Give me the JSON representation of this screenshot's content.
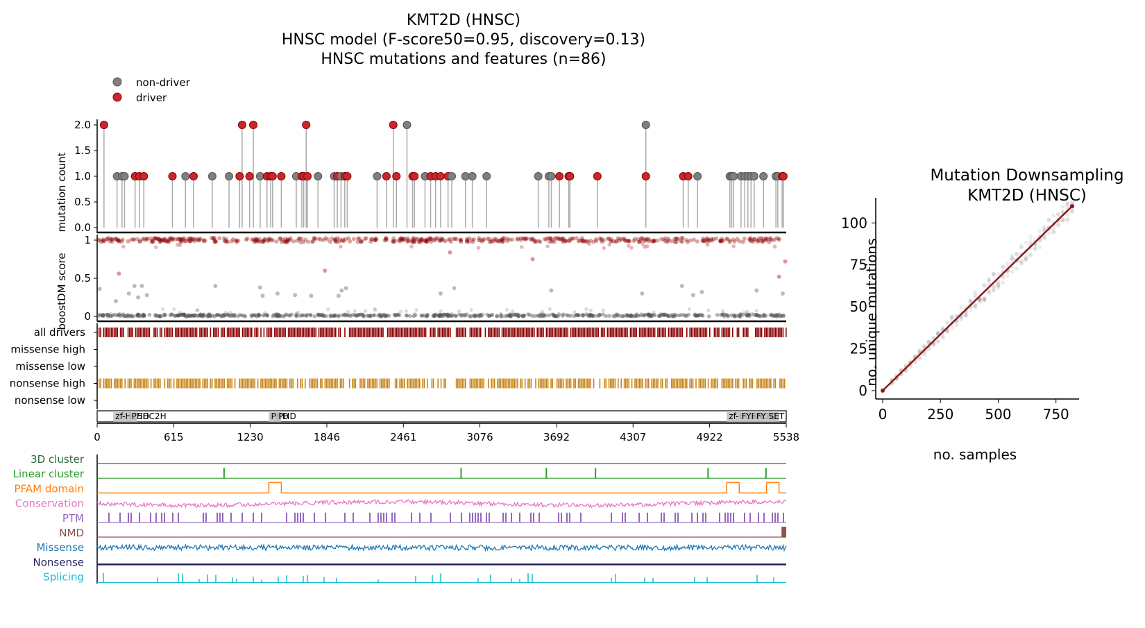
{
  "main_title": {
    "line1": "KMT2D (HNSC)",
    "line2": "HNSC model (F-score50=0.95, discovery=0.13)",
    "line3": "HNSC mutations and features (n=86)"
  },
  "legend": {
    "placement": "top-left",
    "entries": [
      {
        "label": "non-driver",
        "color": "#7f7f7f"
      },
      {
        "label": "driver",
        "color": "#c8282d"
      }
    ]
  },
  "colors": {
    "driver": "#c8282d",
    "non_driver": "#7f7f7f",
    "driver_dark": "#8b0000",
    "nonsense": "#c8861a",
    "cluster3d": "#2e6b3a",
    "linear_cluster": "#2ca02c",
    "pfam": "#ff7f0e",
    "conservation": "#e377c2",
    "ptm": "#9467bd",
    "nmd": "#8c564b",
    "missense": "#1f77b4",
    "nonsense_track": "#1f1f5f",
    "splicing": "#17becf",
    "fit_line": "#8b1a1a"
  },
  "chart_data": [
    {
      "id": "lollipop",
      "type": "scatter",
      "ylabel": "mutation count",
      "xlim": [
        0,
        5538
      ],
      "ylim": [
        0,
        2
      ],
      "yticks": [
        "0.0",
        "0.5",
        "1.0",
        "1.5",
        "2.0"
      ],
      "points": [
        {
          "x": 55,
          "y": 2,
          "driver": true
        },
        {
          "x": 160,
          "y": 1,
          "driver": false
        },
        {
          "x": 200,
          "y": 1,
          "driver": false
        },
        {
          "x": 220,
          "y": 1,
          "driver": false
        },
        {
          "x": 305,
          "y": 1,
          "driver": true
        },
        {
          "x": 340,
          "y": 1,
          "driver": true
        },
        {
          "x": 375,
          "y": 1,
          "driver": true
        },
        {
          "x": 605,
          "y": 1,
          "driver": true
        },
        {
          "x": 710,
          "y": 1,
          "driver": false
        },
        {
          "x": 775,
          "y": 1,
          "driver": true
        },
        {
          "x": 925,
          "y": 1,
          "driver": false
        },
        {
          "x": 1060,
          "y": 1,
          "driver": false
        },
        {
          "x": 1145,
          "y": 1,
          "driver": true
        },
        {
          "x": 1165,
          "y": 2,
          "driver": true
        },
        {
          "x": 1225,
          "y": 1,
          "driver": true
        },
        {
          "x": 1255,
          "y": 2,
          "driver": true
        },
        {
          "x": 1310,
          "y": 1,
          "driver": false
        },
        {
          "x": 1365,
          "y": 1,
          "driver": true
        },
        {
          "x": 1395,
          "y": 1,
          "driver": true
        },
        {
          "x": 1410,
          "y": 1,
          "driver": true
        },
        {
          "x": 1480,
          "y": 1,
          "driver": true
        },
        {
          "x": 1600,
          "y": 1,
          "driver": false
        },
        {
          "x": 1645,
          "y": 1,
          "driver": true
        },
        {
          "x": 1660,
          "y": 1,
          "driver": true
        },
        {
          "x": 1680,
          "y": 2,
          "driver": true
        },
        {
          "x": 1690,
          "y": 1,
          "driver": true
        },
        {
          "x": 1775,
          "y": 1,
          "driver": false
        },
        {
          "x": 1905,
          "y": 1,
          "driver": false
        },
        {
          "x": 1930,
          "y": 1,
          "driver": true
        },
        {
          "x": 1960,
          "y": 1,
          "driver": false
        },
        {
          "x": 1990,
          "y": 1,
          "driver": true
        },
        {
          "x": 2010,
          "y": 1,
          "driver": true
        },
        {
          "x": 2250,
          "y": 1,
          "driver": false
        },
        {
          "x": 2325,
          "y": 1,
          "driver": true
        },
        {
          "x": 2380,
          "y": 2,
          "driver": true
        },
        {
          "x": 2405,
          "y": 1,
          "driver": true
        },
        {
          "x": 2490,
          "y": 2,
          "driver": false
        },
        {
          "x": 2535,
          "y": 1,
          "driver": true
        },
        {
          "x": 2550,
          "y": 1,
          "driver": true
        },
        {
          "x": 2635,
          "y": 1,
          "driver": false
        },
        {
          "x": 2680,
          "y": 1,
          "driver": true
        },
        {
          "x": 2720,
          "y": 1,
          "driver": true
        },
        {
          "x": 2760,
          "y": 1,
          "driver": true
        },
        {
          "x": 2820,
          "y": 1,
          "driver": true
        },
        {
          "x": 2850,
          "y": 1,
          "driver": false
        },
        {
          "x": 2960,
          "y": 1,
          "driver": false
        },
        {
          "x": 3015,
          "y": 1,
          "driver": false
        },
        {
          "x": 3130,
          "y": 1,
          "driver": false
        },
        {
          "x": 3545,
          "y": 1,
          "driver": false
        },
        {
          "x": 3630,
          "y": 1,
          "driver": false
        },
        {
          "x": 3650,
          "y": 1,
          "driver": false
        },
        {
          "x": 3715,
          "y": 1,
          "driver": true
        },
        {
          "x": 3790,
          "y": 1,
          "driver": true
        },
        {
          "x": 3800,
          "y": 1,
          "driver": true
        },
        {
          "x": 4020,
          "y": 1,
          "driver": true
        },
        {
          "x": 4410,
          "y": 2,
          "driver": false
        },
        {
          "x": 4410,
          "y": 1,
          "driver": true
        },
        {
          "x": 4710,
          "y": 1,
          "driver": true
        },
        {
          "x": 4750,
          "y": 1,
          "driver": true
        },
        {
          "x": 4825,
          "y": 1,
          "driver": false
        },
        {
          "x": 5085,
          "y": 1,
          "driver": false
        },
        {
          "x": 5100,
          "y": 1,
          "driver": false
        },
        {
          "x": 5115,
          "y": 1,
          "driver": false
        },
        {
          "x": 5175,
          "y": 1,
          "driver": false
        },
        {
          "x": 5205,
          "y": 1,
          "driver": false
        },
        {
          "x": 5230,
          "y": 1,
          "driver": false
        },
        {
          "x": 5255,
          "y": 1,
          "driver": false
        },
        {
          "x": 5280,
          "y": 1,
          "driver": false
        },
        {
          "x": 5355,
          "y": 1,
          "driver": false
        },
        {
          "x": 5455,
          "y": 1,
          "driver": false
        },
        {
          "x": 5470,
          "y": 1,
          "driver": false
        },
        {
          "x": 5505,
          "y": 1,
          "driver": true
        },
        {
          "x": 5515,
          "y": 1,
          "driver": true
        }
      ]
    },
    {
      "id": "boostdm",
      "type": "scatter",
      "ylabel": "boostDM score",
      "xlim": [
        0,
        5538
      ],
      "ylim": [
        0,
        1
      ],
      "yticks": [
        "0",
        "0.5",
        "1"
      ],
      "bands": [
        {
          "y": 1.0,
          "color": "#8b0000"
        },
        {
          "y": 0.0,
          "color": "#555555"
        }
      ],
      "points": [
        {
          "x": 20,
          "y": 0.36
        },
        {
          "x": 150,
          "y": 0.2
        },
        {
          "x": 175,
          "y": 0.56
        },
        {
          "x": 255,
          "y": 0.3
        },
        {
          "x": 300,
          "y": 0.4
        },
        {
          "x": 330,
          "y": 0.25
        },
        {
          "x": 360,
          "y": 0.4
        },
        {
          "x": 400,
          "y": 0.28
        },
        {
          "x": 950,
          "y": 0.4
        },
        {
          "x": 1310,
          "y": 0.38
        },
        {
          "x": 1330,
          "y": 0.27
        },
        {
          "x": 1450,
          "y": 0.3
        },
        {
          "x": 1590,
          "y": 0.28
        },
        {
          "x": 1720,
          "y": 0.27
        },
        {
          "x": 1830,
          "y": 0.6
        },
        {
          "x": 1940,
          "y": 0.27
        },
        {
          "x": 1965,
          "y": 0.34
        },
        {
          "x": 2000,
          "y": 0.37
        },
        {
          "x": 2760,
          "y": 0.3
        },
        {
          "x": 2835,
          "y": 0.84
        },
        {
          "x": 2870,
          "y": 0.37
        },
        {
          "x": 3500,
          "y": 0.75
        },
        {
          "x": 3650,
          "y": 0.34
        },
        {
          "x": 4380,
          "y": 0.3
        },
        {
          "x": 4700,
          "y": 0.4
        },
        {
          "x": 4790,
          "y": 0.28
        },
        {
          "x": 4860,
          "y": 0.32
        },
        {
          "x": 5300,
          "y": 0.34
        },
        {
          "x": 5480,
          "y": 0.52
        },
        {
          "x": 5510,
          "y": 0.3
        },
        {
          "x": 5530,
          "y": 0.72
        }
      ]
    },
    {
      "id": "driver_tracks",
      "type": "heatmap",
      "rows": [
        {
          "label": "all drivers",
          "color": "#8b0000",
          "density": 0.85
        },
        {
          "label": "missense high",
          "color": "",
          "density": 0
        },
        {
          "label": "missense low",
          "color": "",
          "density": 0
        },
        {
          "label": "nonsense high",
          "color": "#c8861a",
          "density": 0.75
        },
        {
          "label": "nonsense low",
          "color": "",
          "density": 0
        }
      ]
    },
    {
      "id": "domains",
      "type": "table",
      "xlim": [
        0,
        5538
      ],
      "xticks": [
        "0",
        "615",
        "1230",
        "1846",
        "2461",
        "3076",
        "3692",
        "4307",
        "4922",
        "5538"
      ],
      "domains": [
        {
          "start": 130,
          "end": 260,
          "label": "zf-HC5HC2H"
        },
        {
          "start": 260,
          "end": 320,
          "label": "PHD"
        },
        {
          "start": 1380,
          "end": 1470,
          "label": "PHD"
        },
        {
          "start": 1440,
          "end": 1480,
          "label": "PHD"
        },
        {
          "start": 5060,
          "end": 5160,
          "label": "zf-HC5HC2H"
        },
        {
          "start": 5160,
          "end": 5280,
          "label": "FYRN"
        },
        {
          "start": 5280,
          "end": 5380,
          "label": "FYRC"
        },
        {
          "start": 5380,
          "end": 5480,
          "label": "SET"
        }
      ]
    },
    {
      "id": "features",
      "type": "line",
      "xlim": [
        0,
        5538
      ],
      "tracks": [
        {
          "label": "3D cluster",
          "color": "#2e6b3a",
          "kind": "flat"
        },
        {
          "label": "Linear cluster",
          "color": "#2ca02c",
          "kind": "spikes",
          "positions": [
            1020,
            2925,
            3610,
            4005,
            4910,
            5375
          ]
        },
        {
          "label": "PFAM domain",
          "color": "#ff7f0e",
          "kind": "step",
          "segments": [
            [
              1380,
              1480
            ],
            [
              5060,
              5160
            ],
            [
              5380,
              5480
            ]
          ]
        },
        {
          "label": "Conservation",
          "color": "#e377c2",
          "kind": "noise"
        },
        {
          "label": "PTM",
          "color": "#9467bd",
          "kind": "bars"
        },
        {
          "label": "NMD",
          "color": "#8c564b",
          "kind": "block",
          "segments": [
            [
              5500,
              5538
            ]
          ]
        },
        {
          "label": "Missense",
          "color": "#1f77b4",
          "kind": "noise"
        },
        {
          "label": "Nonsense",
          "color": "#1f1f5f",
          "kind": "flat"
        },
        {
          "label": "Splicing",
          "color": "#17becf",
          "kind": "spikes_small"
        }
      ]
    },
    {
      "id": "downsampling",
      "type": "scatter",
      "title_line1": "Mutation Downsampling",
      "title_line2": "KMT2D (HNSC)",
      "xlabel": "no. samples",
      "ylabel": "no. unique mutations",
      "xlim": [
        -30,
        850
      ],
      "ylim": [
        -5,
        115
      ],
      "xticks": [
        0,
        250,
        500,
        750
      ],
      "yticks": [
        0,
        25,
        50,
        75,
        100
      ],
      "fit": {
        "x": [
          0,
          820
        ],
        "y": [
          0,
          110
        ]
      }
    }
  ]
}
